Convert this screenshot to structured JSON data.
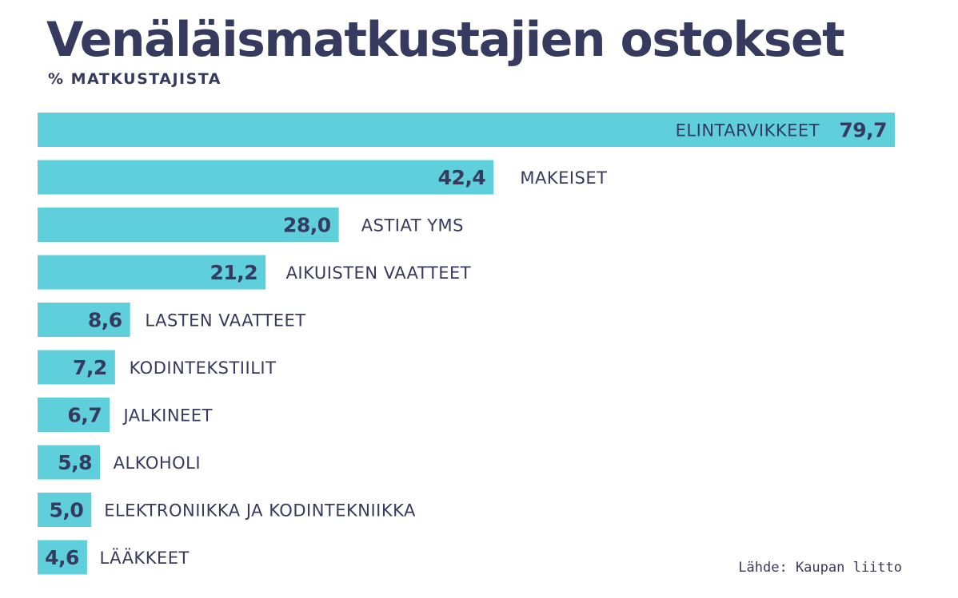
{
  "title": "Venäläismatkustajien ostokset",
  "subtitle": "% MATKUSTAJISTA",
  "source": "Lähde: Kaupan liitto",
  "colors": {
    "bar": "#5fcfdc",
    "text": "#363a5e",
    "background": "#ffffff"
  },
  "chart_data": {
    "type": "bar",
    "orientation": "horizontal",
    "title": "Venäläismatkustajien ostokset",
    "subtitle": "% MATKUSTAJISTA",
    "categories": [
      "ELINTARVIKKEET",
      "MAKEISET",
      "ASTIAT YMS",
      "AIKUISTEN VAATTEET",
      "LASTEN VAATTEET",
      "KODINTEKSTIILIT",
      "JALKINEET",
      "ALKOHOLI",
      "ELEKTRONIIKKA JA KODINTEKNIIKKA",
      "LÄÄKKEET"
    ],
    "values": [
      79.7,
      42.4,
      28.0,
      21.2,
      8.6,
      7.2,
      6.7,
      5.8,
      5.0,
      4.6
    ],
    "value_labels": [
      "79,7",
      "42,4",
      "28,0",
      "21,2",
      "8,6",
      "7,2",
      "6,7",
      "5,8",
      "5,0",
      "4,6"
    ],
    "xlim": [
      0,
      79.7
    ],
    "grid": false
  }
}
